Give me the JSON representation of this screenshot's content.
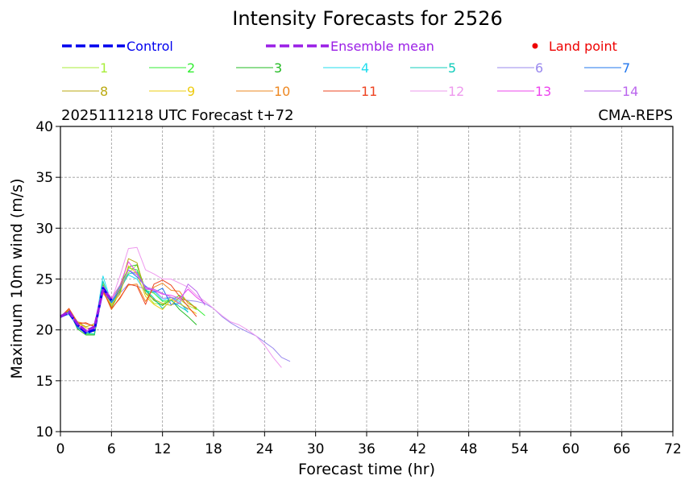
{
  "chart_data": {
    "type": "line",
    "title": "Intensity Forecasts for 2526",
    "subtitle_left": "2025111218 UTC Forecast t+72",
    "subtitle_right": "CMA-REPS",
    "xlabel": "Forecast time (hr)",
    "ylabel": "Maximum 10m wind (m/s)",
    "xlim": [
      0,
      72
    ],
    "ylim": [
      10,
      40
    ],
    "xticks": [
      0,
      6,
      12,
      18,
      24,
      30,
      36,
      42,
      48,
      54,
      60,
      66,
      72
    ],
    "yticks": [
      10,
      15,
      20,
      25,
      30,
      35,
      40
    ],
    "grid": true,
    "legend_placement": "top",
    "legend_header": [
      {
        "label": "Control",
        "color": "#0000ee",
        "style": "dashed"
      },
      {
        "label": "Ensemble mean",
        "color": "#9a1ee6",
        "style": "dashed"
      },
      {
        "label": "Land point",
        "color": "#ee0000",
        "style": "dot"
      }
    ],
    "series": [
      {
        "name": "1",
        "color": "#a8ee3a",
        "x": [
          0,
          1,
          2,
          3,
          4,
          5,
          6,
          7,
          8,
          9,
          10,
          11,
          12,
          13,
          14,
          15,
          16
        ],
        "y": [
          21.3,
          22.0,
          20.6,
          20.0,
          19.8,
          24.6,
          22.4,
          24.1,
          25.6,
          26.4,
          23.6,
          22.6,
          22.5,
          23.2,
          23.0,
          22.4,
          22.0
        ]
      },
      {
        "name": "2",
        "color": "#33ee33",
        "x": [
          0,
          1,
          2,
          3,
          4,
          5,
          6,
          7,
          8,
          9,
          10,
          11,
          12,
          13,
          14,
          15,
          16,
          17
        ],
        "y": [
          21.2,
          21.8,
          20.4,
          19.6,
          19.6,
          24.0,
          22.8,
          24.3,
          26.1,
          25.9,
          23.9,
          23.6,
          22.8,
          22.9,
          23.4,
          22.8,
          22.1,
          21.4
        ]
      },
      {
        "name": "3",
        "color": "#22bb22",
        "x": [
          0,
          1,
          2,
          3,
          4,
          5,
          6,
          7,
          8,
          9,
          10,
          11,
          12,
          13,
          14,
          15,
          16
        ],
        "y": [
          21.2,
          21.9,
          20.1,
          19.5,
          19.5,
          24.4,
          22.2,
          23.7,
          26.2,
          26.4,
          23.9,
          22.9,
          22.4,
          23.0,
          22.0,
          21.3,
          20.5
        ]
      },
      {
        "name": "4",
        "color": "#22ddee",
        "x": [
          0,
          1,
          2,
          3,
          4,
          5,
          6,
          7,
          8,
          9,
          10,
          11,
          12,
          13,
          14,
          15
        ],
        "y": [
          21.3,
          21.5,
          20.4,
          19.8,
          19.9,
          25.3,
          22.6,
          24.2,
          25.4,
          25.0,
          23.7,
          23.8,
          22.9,
          23.2,
          22.8,
          21.7
        ]
      },
      {
        "name": "5",
        "color": "#11ccbb",
        "x": [
          0,
          1,
          2,
          3,
          4,
          5,
          6,
          7,
          8,
          9,
          10,
          11,
          12,
          13,
          14,
          15
        ],
        "y": [
          21.2,
          21.6,
          20.3,
          19.7,
          19.6,
          24.8,
          22.5,
          23.9,
          25.5,
          25.7,
          24.0,
          23.1,
          22.1,
          22.9,
          22.3,
          21.8
        ]
      },
      {
        "name": "6",
        "color": "#9988ee",
        "x": [
          0,
          1,
          2,
          3,
          4,
          5,
          6,
          7,
          8,
          9,
          10,
          11,
          12,
          13,
          14,
          15,
          16,
          17,
          18,
          19,
          20,
          21,
          22,
          23,
          24,
          25,
          26,
          27
        ],
        "y": [
          21.2,
          21.7,
          20.5,
          19.9,
          20.0,
          23.8,
          22.5,
          23.6,
          24.5,
          24.3,
          24.0,
          23.9,
          23.1,
          23.2,
          23.0,
          22.9,
          22.8,
          22.6,
          22.1,
          21.3,
          20.7,
          20.2,
          19.8,
          19.4,
          18.8,
          18.2,
          17.3,
          16.9
        ]
      },
      {
        "name": "7",
        "color": "#2277ee",
        "x": [
          0,
          1,
          2,
          3,
          4,
          5,
          6,
          7,
          8,
          9,
          10,
          11,
          12,
          13,
          14,
          15
        ],
        "y": [
          21.2,
          21.8,
          20.2,
          19.7,
          20.1,
          24.2,
          22.7,
          24.0,
          25.9,
          25.2,
          24.3,
          23.7,
          24.1,
          22.5,
          22.6,
          22.0
        ]
      },
      {
        "name": "8",
        "color": "#bbaa11",
        "x": [
          0,
          1,
          2,
          3,
          4,
          5,
          6,
          7,
          8,
          9,
          10,
          11,
          12,
          13,
          14,
          15,
          16
        ],
        "y": [
          21.4,
          21.9,
          20.8,
          20.3,
          20.6,
          23.8,
          22.2,
          24.0,
          27.0,
          26.6,
          23.6,
          23.0,
          22.6,
          22.4,
          23.2,
          22.8,
          22.0
        ]
      },
      {
        "name": "9",
        "color": "#eecc11",
        "x": [
          0,
          1,
          2,
          3,
          4,
          5,
          6,
          7,
          8,
          9,
          10,
          11,
          12,
          13,
          14,
          15,
          16
        ],
        "y": [
          21.3,
          22.0,
          20.7,
          20.2,
          20.1,
          23.6,
          22.5,
          23.5,
          26.3,
          25.5,
          23.3,
          22.5,
          22.0,
          23.0,
          22.6,
          22.1,
          21.6
        ]
      },
      {
        "name": "10",
        "color": "#ee8822",
        "x": [
          0,
          1,
          2,
          3,
          4,
          5,
          6,
          7,
          8,
          9,
          10,
          11,
          12,
          13,
          14,
          15,
          16
        ],
        "y": [
          21.3,
          22.1,
          20.8,
          20.6,
          20.4,
          23.9,
          22.0,
          23.2,
          24.4,
          24.5,
          22.8,
          24.2,
          24.6,
          23.9,
          23.8,
          22.6,
          22.2
        ]
      },
      {
        "name": "11",
        "color": "#ee4422",
        "x": [
          0,
          1,
          2,
          3,
          4,
          5,
          6,
          7,
          8,
          9,
          10,
          11,
          12,
          13,
          14,
          15,
          16
        ],
        "y": [
          21.2,
          22.1,
          20.6,
          20.7,
          20.3,
          23.9,
          22.1,
          23.1,
          24.5,
          24.3,
          22.5,
          24.5,
          24.9,
          24.4,
          23.3,
          22.3,
          21.3
        ]
      },
      {
        "name": "12",
        "color": "#ee99ee",
        "x": [
          0,
          1,
          2,
          3,
          4,
          5,
          6,
          7,
          8,
          9,
          10,
          11,
          12,
          13,
          14,
          15,
          16,
          17,
          18,
          19,
          20,
          21,
          22,
          23,
          24,
          25,
          26
        ],
        "y": [
          21.2,
          21.6,
          20.5,
          19.9,
          20.2,
          24.1,
          22.9,
          25.3,
          28.0,
          28.1,
          25.9,
          25.5,
          25.0,
          25.0,
          24.6,
          24.2,
          23.4,
          22.8,
          22.1,
          21.4,
          20.8,
          20.5,
          20.0,
          19.4,
          18.5,
          17.3,
          16.3
        ]
      },
      {
        "name": "13",
        "color": "#ee44ee",
        "x": [
          0,
          1,
          2,
          3,
          4,
          5,
          6,
          7,
          8,
          9,
          10,
          11,
          12,
          13,
          14,
          15,
          16,
          17
        ],
        "y": [
          21.3,
          21.7,
          20.6,
          19.9,
          20.3,
          24.3,
          23.1,
          24.4,
          26.7,
          25.6,
          24.1,
          23.9,
          23.5,
          23.4,
          23.1,
          24.0,
          23.2,
          22.6
        ]
      },
      {
        "name": "14",
        "color": "#bb66ee",
        "x": [
          0,
          1,
          2,
          3,
          4,
          5,
          6,
          7,
          8,
          9,
          10,
          11,
          12,
          13,
          14,
          15,
          16,
          17
        ],
        "y": [
          21.2,
          21.7,
          20.4,
          19.8,
          20.1,
          24.0,
          22.9,
          24.1,
          25.9,
          25.4,
          24.2,
          24.0,
          23.6,
          23.2,
          22.6,
          24.5,
          23.8,
          22.4
        ]
      },
      {
        "name": "Control",
        "color": "#0000ee",
        "width": 3,
        "x": [
          0,
          1,
          2,
          3,
          4,
          5,
          6
        ],
        "y": [
          21.3,
          21.7,
          20.5,
          19.7,
          20.0,
          24.1,
          22.9
        ]
      },
      {
        "name": "Ensemble mean",
        "color": "#9a1ee6",
        "width": 3,
        "x": [
          0,
          1,
          2,
          3,
          4,
          5,
          6
        ],
        "y": [
          21.3,
          21.8,
          20.6,
          19.9,
          20.3,
          23.9,
          23.0
        ]
      }
    ]
  }
}
